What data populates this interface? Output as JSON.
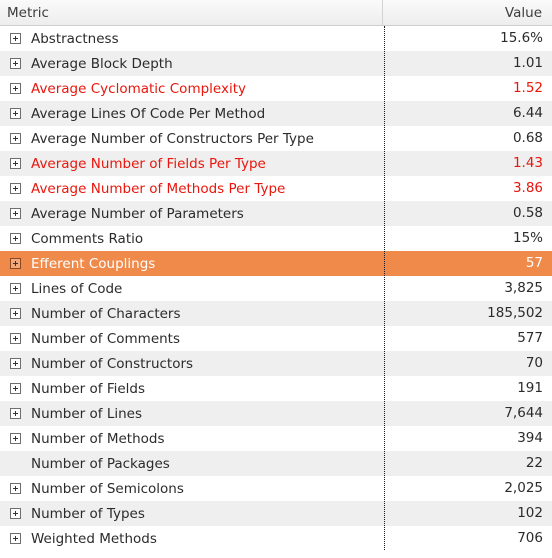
{
  "columns": {
    "metric": "Metric",
    "value": "Value"
  },
  "rows": [
    {
      "label": "Abstractness",
      "value": "15.6%",
      "red": false,
      "expandable": true
    },
    {
      "label": "Average Block Depth",
      "value": "1.01",
      "red": false,
      "expandable": true
    },
    {
      "label": "Average Cyclomatic Complexity",
      "value": "1.52",
      "red": true,
      "expandable": true
    },
    {
      "label": "Average Lines Of Code Per Method",
      "value": "6.44",
      "red": false,
      "expandable": true
    },
    {
      "label": "Average Number of Constructors Per Type",
      "value": "0.68",
      "red": false,
      "expandable": true
    },
    {
      "label": "Average Number of Fields Per Type",
      "value": "1.43",
      "red": true,
      "expandable": true
    },
    {
      "label": "Average Number of Methods Per Type",
      "value": "3.86",
      "red": true,
      "expandable": true
    },
    {
      "label": "Average Number of Parameters",
      "value": "0.58",
      "red": false,
      "expandable": true
    },
    {
      "label": "Comments Ratio",
      "value": "15%",
      "red": false,
      "expandable": true
    },
    {
      "label": "Efferent Couplings",
      "value": "57",
      "red": false,
      "expandable": true,
      "selected": true
    },
    {
      "label": "Lines of Code",
      "value": "3,825",
      "red": false,
      "expandable": true
    },
    {
      "label": "Number of Characters",
      "value": "185,502",
      "red": false,
      "expandable": true
    },
    {
      "label": "Number of Comments",
      "value": "577",
      "red": false,
      "expandable": true
    },
    {
      "label": "Number of Constructors",
      "value": "70",
      "red": false,
      "expandable": true
    },
    {
      "label": "Number of Fields",
      "value": "191",
      "red": false,
      "expandable": true
    },
    {
      "label": "Number of Lines",
      "value": "7,644",
      "red": false,
      "expandable": true
    },
    {
      "label": "Number of Methods",
      "value": "394",
      "red": false,
      "expandable": true
    },
    {
      "label": "Number of Packages",
      "value": "22",
      "red": false,
      "expandable": false
    },
    {
      "label": "Number of Semicolons",
      "value": "2,025",
      "red": false,
      "expandable": true
    },
    {
      "label": "Number of Types",
      "value": "102",
      "red": false,
      "expandable": true
    },
    {
      "label": "Weighted Methods",
      "value": "706",
      "red": false,
      "expandable": true
    }
  ],
  "colors": {
    "selected_row": "#f08a4b",
    "warning_text": "#e8160c",
    "alt_row": "#efefef"
  },
  "icons": {
    "expander": "plus-box-icon"
  }
}
